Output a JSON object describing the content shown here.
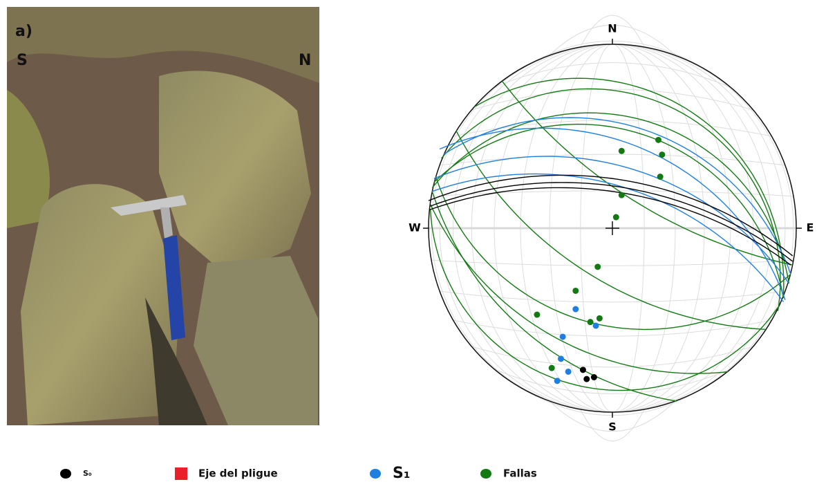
{
  "photo": {
    "labels": [
      "a)",
      "S",
      "N"
    ]
  },
  "chart_data": {
    "type": "stereonet",
    "directions": [
      "N",
      "E",
      "S",
      "W"
    ],
    "series": [
      {
        "name": "S₀",
        "color": "#000000",
        "marker": "circle",
        "x": [
          -0.16,
          -0.14,
          -0.1
        ],
        "y": [
          -0.77,
          -0.82,
          -0.81
        ],
        "planes": [
          {
            "x": [
              -1.0,
              0,
              0.98
            ],
            "y": [
              0.15,
              0.27,
              -0.15
            ]
          },
          {
            "x": [
              -0.99,
              0,
              0.98
            ],
            "y": [
              0.12,
              0.23,
              -0.18
            ]
          },
          {
            "x": [
              -0.995,
              0,
              0.97
            ],
            "y": [
              0.1,
              0.2,
              -0.2
            ]
          }
        ]
      },
      {
        "name": "Eje del pligue",
        "color": "#e8202a",
        "marker": "square",
        "x": [],
        "y": [],
        "planes": []
      },
      {
        "name": "S₁",
        "color": "#1f7fe0",
        "marker": "circle",
        "x": [
          -0.2,
          -0.09,
          -0.27,
          -0.28,
          -0.24,
          -0.3
        ],
        "y": [
          -0.44,
          -0.53,
          -0.59,
          -0.71,
          -0.78,
          -0.83
        ],
        "planes": [
          {
            "x": [
              -0.94,
              0,
              0.94
            ],
            "y": [
              0.43,
              0.49,
              -0.39
            ]
          },
          {
            "x": [
              -0.97,
              0,
              0.96
            ],
            "y": [
              0.27,
              0.35,
              -0.3
            ]
          },
          {
            "x": [
              -0.92,
              0,
              0.97
            ],
            "y": [
              0.4,
              0.58,
              -0.25
            ]
          },
          {
            "x": [
              -0.98,
              0,
              0.93
            ],
            "y": [
              0.2,
              0.24,
              -0.4
            ]
          }
        ]
      },
      {
        "name": "Fallas",
        "color": "#137a13",
        "marker": "circle",
        "x": [
          0.05,
          0.25,
          0.27,
          0.26,
          0.05,
          0.02,
          -0.08,
          -0.2,
          -0.41,
          -0.12,
          -0.07,
          -0.33
        ],
        "y": [
          0.42,
          0.48,
          0.4,
          0.28,
          0.18,
          0.06,
          -0.21,
          -0.34,
          -0.47,
          -0.51,
          -0.49,
          -0.76
        ],
        "planes": [
          {
            "x": [
              -0.98,
              0,
              0.96
            ],
            "y": [
              0.22,
              0.62,
              -0.3
            ]
          },
          {
            "x": [
              -0.93,
              0,
              0.9
            ],
            "y": [
              0.38,
              0.75,
              -0.45
            ]
          },
          {
            "x": [
              -0.97,
              0,
              0.93
            ],
            "y": [
              0.25,
              0.55,
              -0.38
            ]
          },
          {
            "x": [
              -0.75,
              0,
              0.93
            ],
            "y": [
              0.66,
              0.8,
              -0.36
            ]
          },
          {
            "x": [
              -0.99,
              -0.3,
              0.63
            ],
            "y": [
              0.13,
              -0.6,
              -0.78
            ]
          },
          {
            "x": [
              -0.98,
              -0.2,
              0.35
            ],
            "y": [
              0.2,
              -0.75,
              -0.94
            ]
          },
          {
            "x": [
              -0.96,
              0.2,
              0.97
            ],
            "y": [
              0.28,
              -0.55,
              -0.25
            ]
          },
          {
            "x": [
              -0.85,
              -0.2,
              0.83
            ],
            "y": [
              0.53,
              -0.2,
              -0.55
            ]
          },
          {
            "x": [
              -0.99,
              0.1,
              0.9
            ],
            "y": [
              0.1,
              -0.88,
              -0.43
            ]
          },
          {
            "x": [
              -0.6,
              -0.1,
              0.98
            ],
            "y": [
              0.8,
              0.3,
              -0.2
            ]
          }
        ]
      }
    ]
  }
}
